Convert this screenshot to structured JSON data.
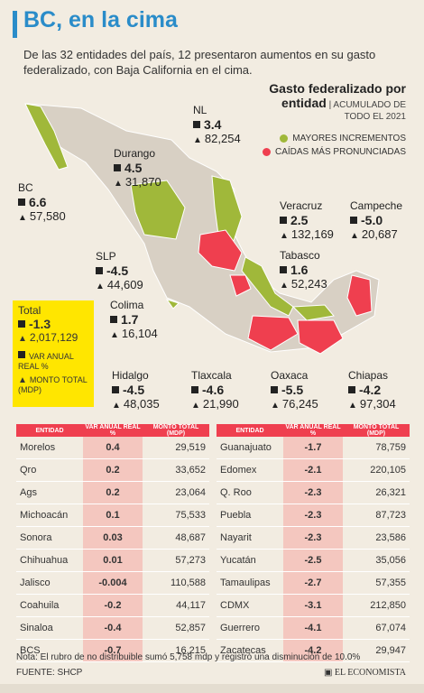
{
  "header": {
    "title": "BC, en la cima"
  },
  "intro": "De las 32 entidades del país, 12 presentaron aumentos en su gasto federalizado, con Baja California en el cima.",
  "legend": {
    "title_line1": "Gasto federalizado por",
    "title_line2": "entidad",
    "subtitle": "ACUMULADO DE TODO EL 2021",
    "increase_label": "MAYORES INCREMENTOS",
    "decrease_label": "CAÍDAS MÁS PRONUNCIADAS",
    "increase_color": "#a0b83a",
    "decrease_color": "#ef3f4f"
  },
  "map_labels": [
    {
      "name": "NL",
      "var": "3.4",
      "monto": "82,254"
    },
    {
      "name": "Durango",
      "var": "4.5",
      "monto": "31,870"
    },
    {
      "name": "BC",
      "var": "6.6",
      "monto": "57,580"
    },
    {
      "name": "Veracruz",
      "var": "2.5",
      "monto": "132,169"
    },
    {
      "name": "Campeche",
      "var": "-5.0",
      "monto": "20,687"
    },
    {
      "name": "SLP",
      "var": "-4.5",
      "monto": "44,609"
    },
    {
      "name": "Tabasco",
      "var": "1.6",
      "monto": "52,243"
    },
    {
      "name": "Colima",
      "var": "1.7",
      "monto": "16,104"
    },
    {
      "name": "Hidalgo",
      "var": "-4.5",
      "monto": "48,035"
    },
    {
      "name": "Tlaxcala",
      "var": "-4.6",
      "monto": "21,990"
    },
    {
      "name": "Oaxaca",
      "var": "-5.5",
      "monto": "76,245"
    },
    {
      "name": "Chiapas",
      "var": "-4.2",
      "monto": "97,304"
    }
  ],
  "total": {
    "label": "Total",
    "var": "-1.3",
    "monto": "2,017,129",
    "var_legend": "VAR ANUAL REAL %",
    "monto_legend": "MONTO TOTAL (MDP)"
  },
  "table_headers": {
    "entidad": "ENTIDAD",
    "var": "VAR ANUAL REAL %",
    "monto": "MONTO TOTAL (MDP)"
  },
  "table_left": [
    {
      "entidad": "Morelos",
      "var": "0.4",
      "monto": "29,519"
    },
    {
      "entidad": "Qro",
      "var": "0.2",
      "monto": "33,652"
    },
    {
      "entidad": "Ags",
      "var": "0.2",
      "monto": "23,064"
    },
    {
      "entidad": "Michoacán",
      "var": "0.1",
      "monto": "75,533"
    },
    {
      "entidad": "Sonora",
      "var": "0.03",
      "monto": "48,687"
    },
    {
      "entidad": "Chihuahua",
      "var": "0.01",
      "monto": "57,273"
    },
    {
      "entidad": "Jalisco",
      "var": "-0.004",
      "monto": "110,588"
    },
    {
      "entidad": "Coahuila",
      "var": "-0.2",
      "monto": "44,117"
    },
    {
      "entidad": "Sinaloa",
      "var": "-0.4",
      "monto": "52,857"
    },
    {
      "entidad": "BCS",
      "var": "-0.7",
      "monto": "16,215"
    }
  ],
  "table_right": [
    {
      "entidad": "Guanajuato",
      "var": "-1.7",
      "monto": "78,759"
    },
    {
      "entidad": "Edomex",
      "var": "-2.1",
      "monto": "220,105"
    },
    {
      "entidad": "Q. Roo",
      "var": "-2.3",
      "monto": "26,321"
    },
    {
      "entidad": "Puebla",
      "var": "-2.3",
      "monto": "87,723"
    },
    {
      "entidad": "Nayarit",
      "var": "-2.3",
      "monto": "23,586"
    },
    {
      "entidad": "Yucatán",
      "var": "-2.5",
      "monto": "35,056"
    },
    {
      "entidad": "Tamaulipas",
      "var": "-2.7",
      "monto": "57,355"
    },
    {
      "entidad": "CDMX",
      "var": "-3.1",
      "monto": "212,850"
    },
    {
      "entidad": "Guerrero",
      "var": "-4.1",
      "monto": "67,074"
    },
    {
      "entidad": "Zacatecas",
      "var": "-4.2",
      "monto": "29,947"
    }
  ],
  "note": "Nota: El rubro de no distribuible sumó 5,758 mdp y registró una disminución de 10.0%",
  "source": "FUENTE: SHCP",
  "logo": "EL ECONOMISTA"
}
